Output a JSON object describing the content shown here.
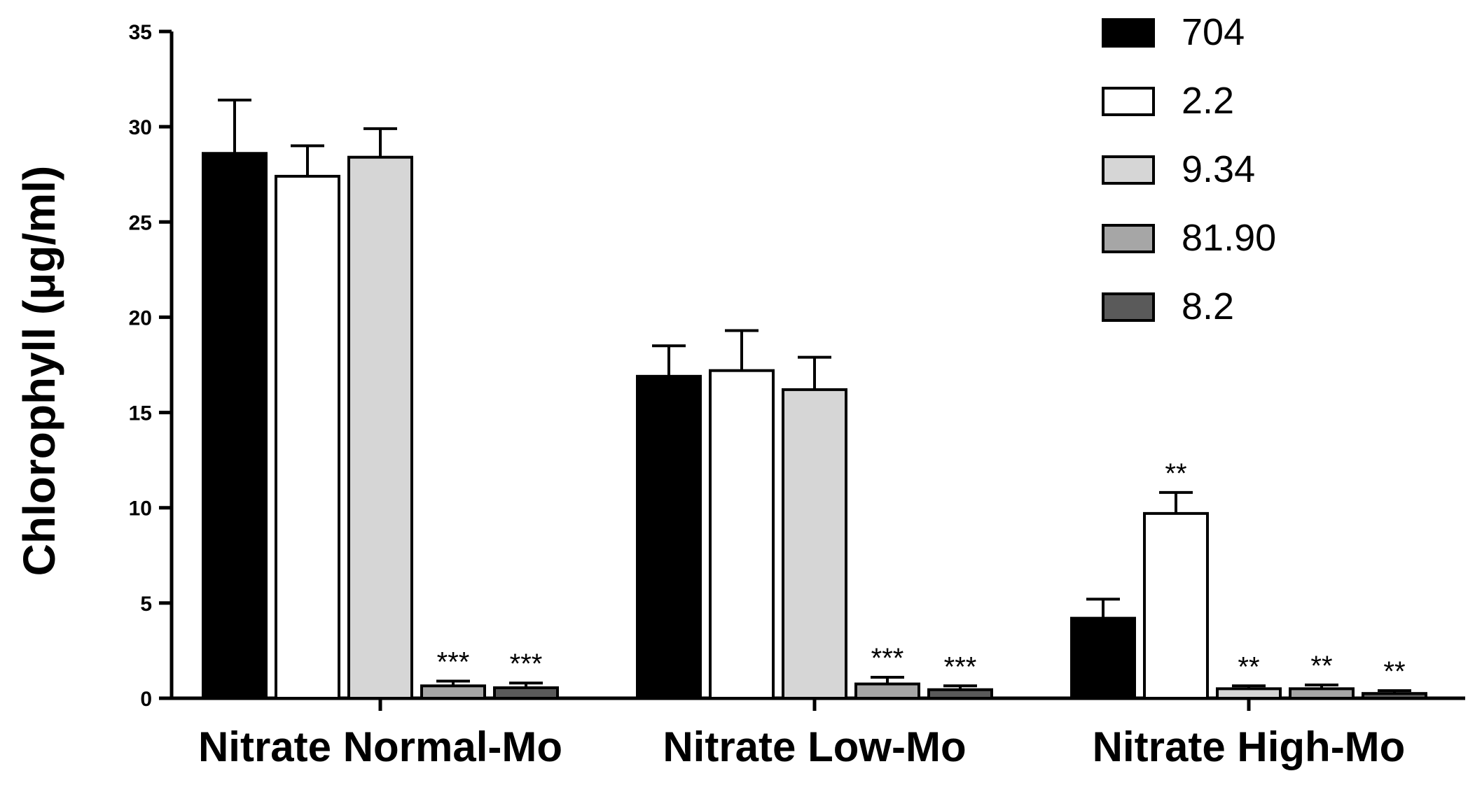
{
  "chart_data": {
    "type": "bar",
    "title": "",
    "xlabel": "",
    "ylabel": "Chlorophyll (μg/ml)",
    "ylim": [
      0,
      35
    ],
    "yticks": [
      0,
      5,
      10,
      15,
      20,
      25,
      30,
      35
    ],
    "categories": [
      "Nitrate Normal-Mo",
      "Nitrate Low-Mo",
      "Nitrate High-Mo"
    ],
    "series": [
      {
        "name": "704",
        "color": "#000000",
        "values": [
          28.6,
          16.9,
          4.2
        ],
        "errors": [
          2.8,
          1.6,
          1.0
        ],
        "significance": [
          "",
          "",
          ""
        ]
      },
      {
        "name": "2.2",
        "color": "#ffffff",
        "values": [
          27.4,
          17.2,
          9.7
        ],
        "errors": [
          1.6,
          2.1,
          1.1
        ],
        "significance": [
          "",
          "",
          "**"
        ]
      },
      {
        "name": "9.34",
        "color": "#d6d6d6",
        "values": [
          28.4,
          16.2,
          0.5
        ],
        "errors": [
          1.5,
          1.7,
          0.15
        ],
        "significance": [
          "",
          "",
          "**"
        ]
      },
      {
        "name": "81.90",
        "color": "#a6a6a6",
        "values": [
          0.65,
          0.75,
          0.5
        ],
        "errors": [
          0.25,
          0.35,
          0.2
        ],
        "significance": [
          "***",
          "***",
          "**"
        ]
      },
      {
        "name": "8.2",
        "color": "#5a5a5a",
        "values": [
          0.55,
          0.45,
          0.25
        ],
        "errors": [
          0.25,
          0.2,
          0.15
        ],
        "significance": [
          "***",
          "***",
          "**"
        ]
      }
    ],
    "legend_position": "top-right"
  }
}
